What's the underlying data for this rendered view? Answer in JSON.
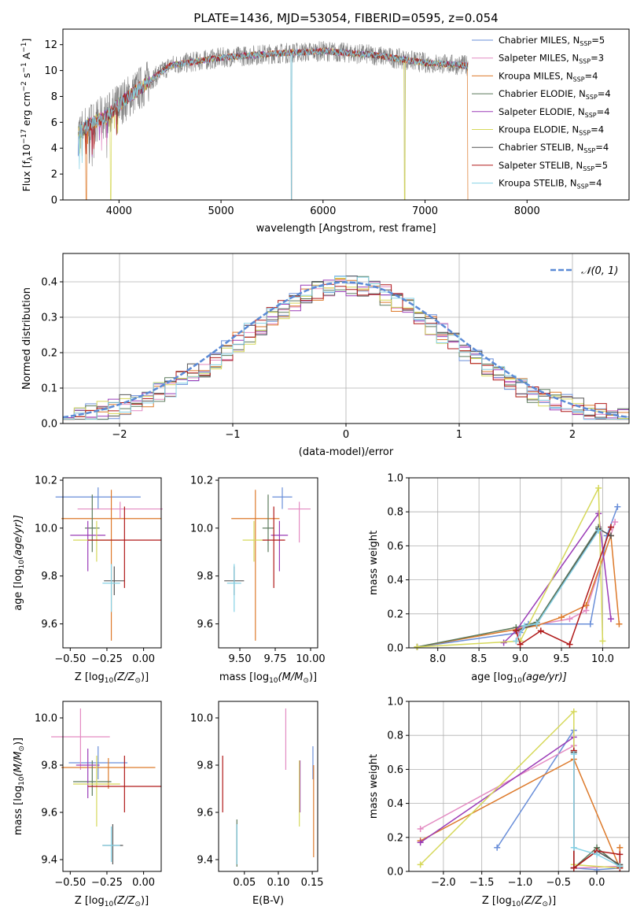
{
  "chart_data": [
    {
      "id": "spectrum",
      "type": "line",
      "title": "PLATE=1436, MJD=53054, FIBERID=0595, z=0.054",
      "xlabel": "wavelength [Angstrom, rest frame]",
      "ylabel_main": "Flux [f",
      "ylabel_lambda": "λ",
      "ylabel_mid": "10",
      "ylabel_exp": "−17",
      "ylabel_unit": " erg cm",
      "ylabel_exp2": "−2",
      "ylabel_s": " s",
      "ylabel_exp3": "−1",
      "ylabel_A": " A",
      "ylabel_exp4": "−1",
      "ylabel_end": "]",
      "xlim": [
        3450,
        9000
      ],
      "ylim": [
        0,
        13.2
      ],
      "xticks": [
        "4000",
        "5000",
        "6000",
        "7000",
        "8000"
      ],
      "xtick_values": [
        4000,
        5000,
        6000,
        7000,
        8000
      ],
      "yticks": [
        "0",
        "2",
        "4",
        "6",
        "8",
        "10",
        "12"
      ],
      "ytick_values": [
        0,
        2,
        4,
        6,
        8,
        10,
        12
      ],
      "data_range": [
        3600,
        7420
      ],
      "continuum": {
        "x": [
          3600,
          3700,
          3800,
          3900,
          4000,
          4100,
          4300,
          4500,
          5000,
          5500,
          6000,
          6500,
          7000,
          7400
        ],
        "y": [
          5.2,
          5.8,
          6.2,
          6.6,
          7.4,
          8.0,
          9.2,
          10.4,
          11.0,
          11.3,
          11.5,
          11.2,
          10.6,
          10.4
        ]
      },
      "legend": [
        {
          "name": "Chabrier MILES, N",
          "sub": "SSP",
          "value": "=5",
          "color": "#6a8fd9"
        },
        {
          "name": "Salpeter MILES, N",
          "sub": "SSP",
          "value": "=3",
          "color": "#e38bc2"
        },
        {
          "name": "Kroupa MILES, N",
          "sub": "SSP",
          "value": "=4",
          "color": "#dd7a2b"
        },
        {
          "name": "Chabrier ELODIE, N",
          "sub": "SSP",
          "value": "=4",
          "color": "#5c7a5c"
        },
        {
          "name": "Salpeter ELODIE, N",
          "sub": "SSP",
          "value": "=4",
          "color": "#9b3cb7"
        },
        {
          "name": "Kroupa ELODIE, N",
          "sub": "SSP",
          "value": "=4",
          "color": "#d6d85a"
        },
        {
          "name": "Chabrier STELIB, N",
          "sub": "SSP",
          "value": "=4",
          "color": "#555555"
        },
        {
          "name": "Salpeter STELIB, N",
          "sub": "SSP",
          "value": "=5",
          "color": "#b01a1a"
        },
        {
          "name": "Kroupa STELIB, N",
          "sub": "SSP",
          "value": "=4",
          "color": "#86d2e6"
        }
      ]
    },
    {
      "id": "residuals",
      "type": "line",
      "xlabel": "(data-model)/error",
      "ylabel": "Normed distribution",
      "xlim": [
        -2.5,
        2.5
      ],
      "ylim": [
        0,
        0.48
      ],
      "xticks": [
        "−2",
        "−1",
        "0",
        "1",
        "2"
      ],
      "xtick_values": [
        -2,
        -1,
        0,
        1,
        2
      ],
      "yticks": [
        "0.0",
        "0.1",
        "0.2",
        "0.3",
        "0.4"
      ],
      "ytick_values": [
        0,
        0.1,
        0.2,
        0.3,
        0.4
      ],
      "grid": true,
      "legend_label": "𝒩(0, 1)",
      "normal": {
        "mean": 0,
        "sigma": 1,
        "color": "#5b8ad6"
      }
    },
    {
      "id": "age-vs-Z",
      "type": "scatter",
      "xlabel": "Z [log",
      "xlabel_sub": "10",
      "xlabel_rest": "(Z/Z",
      "xlabel_sun": "⊙",
      "xlabel_end": ")]",
      "ylabel": "age  [log",
      "ylabel_sub": "10",
      "ylabel_rest": "(age/yr)]",
      "xlim": [
        -0.55,
        0.12
      ],
      "ylim": [
        9.5,
        10.21
      ],
      "xticks": [
        "−0.50",
        "−0.25",
        "0.00"
      ],
      "xtick_values": [
        -0.5,
        -0.25,
        0
      ],
      "yticks": [
        "9.6",
        "9.8",
        "10.0",
        "10.2"
      ],
      "ytick_values": [
        9.6,
        9.8,
        10.0,
        10.2
      ],
      "points": [
        {
          "x": -0.31,
          "y": 10.13,
          "xerr": 0.29,
          "yerr": [
            0.05,
            0.04
          ],
          "color": "#6a8fd9"
        },
        {
          "x": -0.16,
          "y": 10.08,
          "xerr": 0.29,
          "yerr": [
            0.04,
            0.03
          ],
          "color": "#e38bc2"
        },
        {
          "x": -0.22,
          "y": 10.04,
          "xerr": 0.34,
          "yerr": [
            0.51,
            0.12
          ],
          "color": "#dd7a2b"
        },
        {
          "x": -0.35,
          "y": 10.0,
          "xerr": 0.05,
          "yerr": [
            0.1,
            0.14
          ],
          "color": "#5c7a5c"
        },
        {
          "x": -0.38,
          "y": 9.97,
          "xerr": 0.12,
          "yerr": [
            0.15,
            0.06
          ],
          "color": "#9b3cb7"
        },
        {
          "x": -0.32,
          "y": 9.95,
          "xerr": 0.16,
          "yerr": [
            0.09,
            0.08
          ],
          "color": "#d6d85a"
        },
        {
          "x": -0.2,
          "y": 9.78,
          "xerr": 0.07,
          "yerr": [
            0.06,
            0.06
          ],
          "color": "#555555"
        },
        {
          "x": -0.13,
          "y": 9.95,
          "xerr": 0.25,
          "yerr": [
            0.2,
            0.14
          ],
          "color": "#b01a1a"
        },
        {
          "x": -0.22,
          "y": 9.77,
          "xerr": 0.06,
          "yerr": [
            0.12,
            0.08
          ],
          "color": "#86d2e6"
        }
      ]
    },
    {
      "id": "age-vs-mass",
      "type": "scatter",
      "xlabel": "mass [log",
      "xlabel_sub": "10",
      "xlabel_rest": "(M/M",
      "xlabel_sun": "⊙",
      "xlabel_end": ")]",
      "xlim": [
        9.35,
        10.05
      ],
      "ylim": [
        9.5,
        10.21
      ],
      "xticks": [
        "9.50",
        "9.75",
        "10.00"
      ],
      "xtick_values": [
        9.5,
        9.75,
        10.0
      ],
      "yticks": [
        "9.6",
        "9.8",
        "10.0",
        "10.2"
      ],
      "ytick_values": [
        9.6,
        9.8,
        10.0,
        10.2
      ],
      "points": [
        {
          "x": 9.8,
          "y": 10.13,
          "xerr": 0.07,
          "yerr": [
            0.05,
            0.04
          ],
          "color": "#6a8fd9"
        },
        {
          "x": 9.92,
          "y": 10.08,
          "xerr": 0.08,
          "yerr": [
            0.14,
            0.03
          ],
          "color": "#e38bc2"
        },
        {
          "x": 9.61,
          "y": 10.04,
          "xerr": 0.17,
          "yerr": [
            0.51,
            0.12
          ],
          "color": "#dd7a2b"
        },
        {
          "x": 9.7,
          "y": 10.0,
          "xerr": 0.04,
          "yerr": [
            0.1,
            0.14
          ],
          "color": "#5c7a5c"
        },
        {
          "x": 9.78,
          "y": 9.97,
          "xerr": 0.06,
          "yerr": [
            0.15,
            0.06
          ],
          "color": "#9b3cb7"
        },
        {
          "x": 9.6,
          "y": 9.95,
          "xerr": 0.08,
          "yerr": [
            0.09,
            0.08
          ],
          "color": "#d6d85a"
        },
        {
          "x": 9.46,
          "y": 9.78,
          "xerr": 0.07,
          "yerr": [
            0.06,
            0.06
          ],
          "color": "#555555"
        },
        {
          "x": 9.74,
          "y": 9.95,
          "xerr": 0.08,
          "yerr": [
            0.2,
            0.14
          ],
          "color": "#b01a1a"
        },
        {
          "x": 9.46,
          "y": 9.77,
          "xerr": 0.05,
          "yerr": [
            0.12,
            0.08
          ],
          "color": "#86d2e6"
        }
      ]
    },
    {
      "id": "weight-vs-age",
      "type": "line",
      "xlabel": "age  [log",
      "xlabel_sub": "10",
      "xlabel_rest": "(age/yr)]",
      "ylabel": "mass weight",
      "xlim": [
        7.65,
        10.32
      ],
      "ylim": [
        0,
        1.0
      ],
      "xticks": [
        "8.0",
        "8.5",
        "9.0",
        "9.5",
        "10.0"
      ],
      "xtick_values": [
        8.0,
        8.5,
        9.0,
        9.5,
        10.0
      ],
      "yticks": [
        "0.0",
        "0.2",
        "0.4",
        "0.6",
        "0.8",
        "1.0"
      ],
      "ytick_values": [
        0,
        0.2,
        0.4,
        0.6,
        0.8,
        1.0
      ],
      "grid": true,
      "series": [
        {
          "color": "#6a8fd9",
          "x": [
            7.75,
            9.0,
            9.1,
            9.85,
            10.05,
            10.18
          ],
          "y": [
            0.005,
            0.09,
            0.14,
            0.14,
            0.66,
            0.83
          ]
        },
        {
          "color": "#e38bc2",
          "x": [
            8.95,
            9.0,
            9.6,
            9.8,
            10.15
          ],
          "y": [
            0.04,
            0.12,
            0.17,
            0.22,
            0.74
          ]
        },
        {
          "color": "#dd7a2b",
          "x": [
            7.75,
            9.2,
            9.5,
            9.8,
            10.1,
            10.2
          ],
          "y": [
            0.005,
            0.13,
            0.18,
            0.25,
            0.66,
            0.14
          ]
        },
        {
          "color": "#5c7a5c",
          "x": [
            7.75,
            8.95,
            9.2,
            9.95
          ],
          "y": [
            0.005,
            0.12,
            0.15,
            0.71
          ]
        },
        {
          "color": "#9b3cb7",
          "x": [
            8.8,
            8.95,
            9.95,
            10.1
          ],
          "y": [
            0.03,
            0.1,
            0.79,
            0.17
          ]
        },
        {
          "color": "#d6d85a",
          "x": [
            7.75,
            9.0,
            9.95,
            10.0
          ],
          "y": [
            0.005,
            0.04,
            0.94,
            0.04
          ]
        },
        {
          "color": "#555555",
          "x": [
            8.95,
            9.2,
            9.95,
            10.1
          ],
          "y": [
            0.1,
            0.14,
            0.7,
            0.66
          ]
        },
        {
          "color": "#b01a1a",
          "x": [
            8.95,
            9.0,
            9.25,
            9.6,
            10.1
          ],
          "y": [
            0.1,
            0.02,
            0.1,
            0.02,
            0.71
          ]
        },
        {
          "color": "#86d2e6",
          "x": [
            8.95,
            9.05,
            9.2,
            9.95
          ],
          "y": [
            0.04,
            0.13,
            0.14,
            0.69
          ]
        }
      ]
    },
    {
      "id": "mass-vs-Z",
      "type": "scatter",
      "xlabel": "Z [log",
      "xlabel_sub": "10",
      "xlabel_rest": "(Z/Z",
      "xlabel_sun": "⊙",
      "xlabel_end": ")]",
      "ylabel": "mass [log",
      "ylabel_sub": "10",
      "ylabel_rest": "(M/M",
      "ylabel_sun": "⊙",
      "ylabel_end": ")]",
      "xlim": [
        -0.55,
        0.12
      ],
      "ylim": [
        9.35,
        10.07
      ],
      "xticks": [
        "−0.50",
        "−0.25",
        "0.00"
      ],
      "xtick_values": [
        -0.5,
        -0.25,
        0
      ],
      "yticks": [
        "9.4",
        "9.6",
        "9.8",
        "10.0"
      ],
      "ytick_values": [
        9.4,
        9.6,
        9.8,
        10.0
      ],
      "points": [
        {
          "x": -0.31,
          "y": 9.81,
          "xerr": 0.2,
          "yerr": [
            0.07,
            0.07
          ],
          "color": "#6a8fd9"
        },
        {
          "x": -0.43,
          "y": 9.92,
          "xerr": 0.2,
          "yerr": [
            0.14,
            0.12
          ],
          "color": "#e38bc2"
        },
        {
          "x": -0.24,
          "y": 9.79,
          "xerr": 0.32,
          "yerr": [
            0.09,
            0.04
          ],
          "color": "#dd7a2b"
        },
        {
          "x": -0.35,
          "y": 9.73,
          "xerr": 0.13,
          "yerr": [
            0.06,
            0.09
          ],
          "color": "#5c7a5c"
        },
        {
          "x": -0.38,
          "y": 9.8,
          "xerr": 0.08,
          "yerr": [
            0.14,
            0.07
          ],
          "color": "#9b3cb7"
        },
        {
          "x": -0.32,
          "y": 9.72,
          "xerr": 0.16,
          "yerr": [
            0.18,
            0.12
          ],
          "color": "#d6d85a"
        },
        {
          "x": -0.21,
          "y": 9.46,
          "xerr": 0.07,
          "yerr": [
            0.08,
            0.09
          ],
          "color": "#555555"
        },
        {
          "x": -0.13,
          "y": 9.71,
          "xerr": 0.25,
          "yerr": [
            0.11,
            0.13
          ],
          "color": "#b01a1a"
        },
        {
          "x": -0.22,
          "y": 9.46,
          "xerr": 0.06,
          "yerr": [
            0.07,
            0.08
          ],
          "color": "#86d2e6"
        }
      ]
    },
    {
      "id": "mass-vs-EBV",
      "type": "scatter",
      "xlabel": "E(B-V)",
      "xlim": [
        0.012,
        0.158
      ],
      "ylim": [
        9.35,
        10.07
      ],
      "xticks": [
        "0.05",
        "0.10",
        "0.15"
      ],
      "xtick_values": [
        0.05,
        0.1,
        0.15
      ],
      "yticks": [
        "9.4",
        "9.6",
        "9.8",
        "10.0"
      ],
      "ytick_values": [
        9.4,
        9.6,
        9.8,
        10.0
      ],
      "points": [
        {
          "x": 0.151,
          "y": 9.81,
          "yerr": [
            0.07,
            0.07
          ],
          "color": "#6a8fd9"
        },
        {
          "x": 0.111,
          "y": 9.92,
          "yerr": [
            0.14,
            0.12
          ],
          "color": "#e38bc2"
        },
        {
          "x": 0.152,
          "y": 9.6,
          "yerr": [
            0.19,
            0.2
          ],
          "color": "#dd7a2b"
        },
        {
          "x": 0.039,
          "y": 9.47,
          "yerr": [
            0.1,
            0.1
          ],
          "color": "#5c7a5c"
        },
        {
          "x": 0.132,
          "y": 9.7,
          "yerr": [
            0.1,
            0.12
          ],
          "color": "#9b3cb7"
        },
        {
          "x": 0.131,
          "y": 9.68,
          "yerr": [
            0.14,
            0.14
          ],
          "color": "#d6d85a"
        },
        {
          "x": 0.039,
          "y": 9.46,
          "yerr": [
            0.08,
            0.09
          ],
          "color": "#555555"
        },
        {
          "x": 0.018,
          "y": 9.71,
          "yerr": [
            0.11,
            0.13
          ],
          "color": "#b01a1a"
        },
        {
          "x": 0.039,
          "y": 9.46,
          "yerr": [
            0.08,
            0.09
          ],
          "color": "#86d2e6"
        }
      ]
    },
    {
      "id": "weight-vs-Z",
      "type": "line",
      "xlabel": "Z [log",
      "xlabel_sub": "10",
      "xlabel_rest": "(Z/Z",
      "xlabel_sun": "⊙",
      "xlabel_end": ")]",
      "ylabel": "mass weight",
      "xlim": [
        -2.45,
        0.42
      ],
      "ylim": [
        0,
        1.0
      ],
      "xticks": [
        "−2.0",
        "−1.5",
        "−1.0",
        "−0.5",
        "0.0"
      ],
      "xtick_values": [
        -2.0,
        -1.5,
        -1.0,
        -0.5,
        0.0
      ],
      "yticks": [
        "0.0",
        "0.2",
        "0.4",
        "0.6",
        "0.8",
        "1.0"
      ],
      "ytick_values": [
        0,
        0.2,
        0.4,
        0.6,
        0.8,
        1.0
      ],
      "grid": true,
      "series": [
        {
          "color": "#6a8fd9",
          "x": [
            -1.3,
            -0.3,
            -0.3,
            0.0,
            0.3
          ],
          "y": [
            0.14,
            0.83,
            0.02,
            0.01,
            0.02
          ]
        },
        {
          "color": "#e38bc2",
          "x": [
            -2.3,
            -0.3,
            -0.3,
            0.3
          ],
          "y": [
            0.25,
            0.74,
            0.02,
            0.03
          ]
        },
        {
          "color": "#dd7a2b",
          "x": [
            -2.3,
            -0.3,
            0.3,
            0.3
          ],
          "y": [
            0.18,
            0.66,
            0.02,
            0.14
          ]
        },
        {
          "color": "#5c7a5c",
          "x": [
            -0.3,
            -0.3,
            0.0,
            0.3
          ],
          "y": [
            0.71,
            0.02,
            0.14,
            0.03
          ]
        },
        {
          "color": "#9b3cb7",
          "x": [
            -2.3,
            -0.3,
            -0.3
          ],
          "y": [
            0.17,
            0.79,
            0.02
          ]
        },
        {
          "color": "#d6d85a",
          "x": [
            -2.3,
            -0.3,
            -0.3,
            0.3
          ],
          "y": [
            0.04,
            0.94,
            0.04,
            0.02
          ]
        },
        {
          "color": "#555555",
          "x": [
            -0.3,
            -0.3,
            0.0,
            0.3
          ],
          "y": [
            0.7,
            0.02,
            0.12,
            0.04
          ]
        },
        {
          "color": "#b01a1a",
          "x": [
            -0.3,
            -0.3,
            0.0,
            0.3,
            0.3
          ],
          "y": [
            0.71,
            0.02,
            0.12,
            0.1,
            0.02
          ]
        },
        {
          "color": "#86d2e6",
          "x": [
            -0.3,
            -0.3,
            0.0,
            0.3
          ],
          "y": [
            0.69,
            0.14,
            0.1,
            0.03
          ]
        }
      ]
    }
  ]
}
